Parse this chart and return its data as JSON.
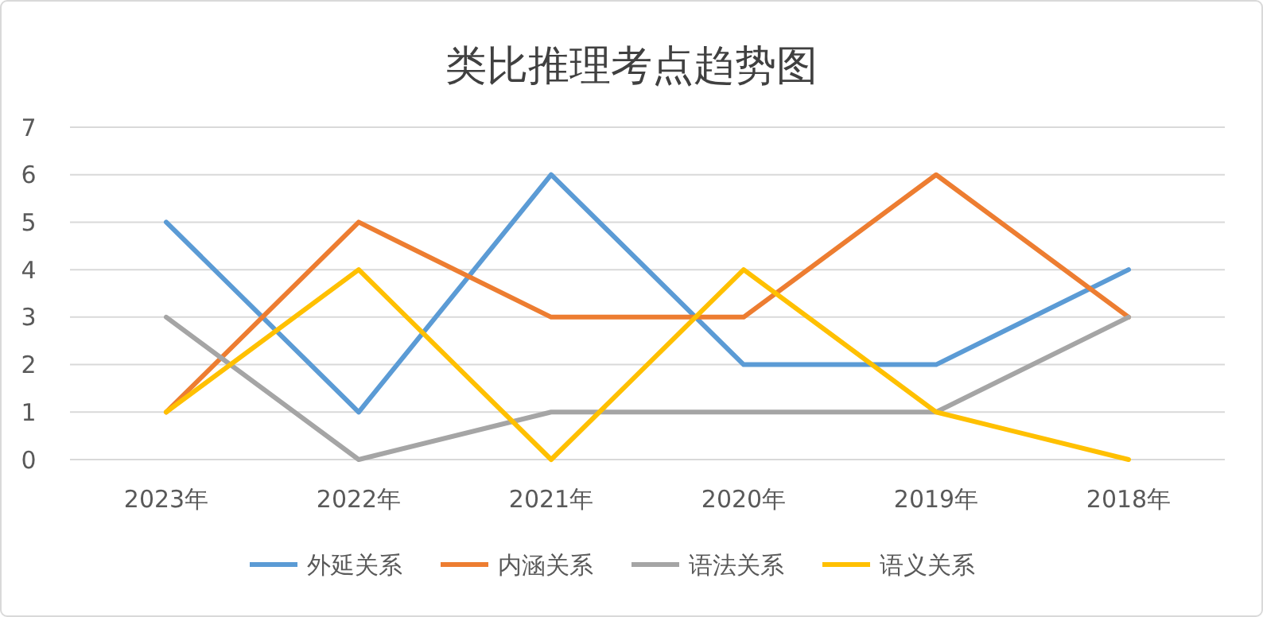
{
  "chart_data": {
    "type": "line",
    "title": "类比推理考点趋势图",
    "categories": [
      "2023年",
      "2022年",
      "2021年",
      "2020年",
      "2019年",
      "2018年"
    ],
    "series": [
      {
        "name": "外延关系",
        "color": "#5b9bd5",
        "values": [
          5,
          1,
          6,
          2,
          2,
          4
        ]
      },
      {
        "name": "内涵关系",
        "color": "#ed7d31",
        "values": [
          1,
          5,
          3,
          3,
          6,
          3
        ]
      },
      {
        "name": "语法关系",
        "color": "#a5a5a5",
        "values": [
          3,
          0,
          1,
          1,
          1,
          3
        ]
      },
      {
        "name": "语义关系",
        "color": "#ffc000",
        "values": [
          1,
          4,
          0,
          4,
          1,
          0
        ]
      }
    ],
    "ylim": [
      0,
      7
    ],
    "yticks": [
      0,
      1,
      2,
      3,
      4,
      5,
      6,
      7
    ],
    "grid": "y",
    "legend": "bottom",
    "marker": "none",
    "line_style": "solid"
  }
}
